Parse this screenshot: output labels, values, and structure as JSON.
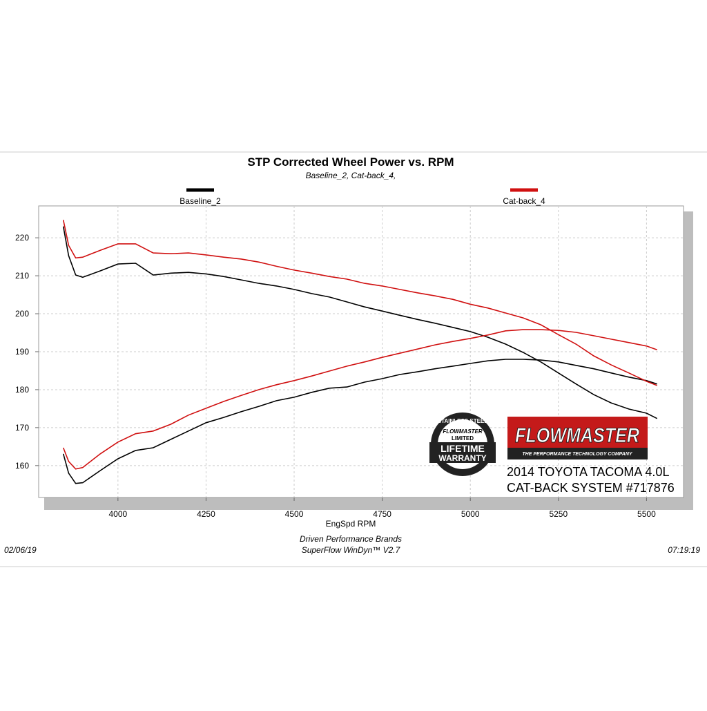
{
  "chart_data": {
    "type": "line",
    "title": "STP Corrected Wheel Power vs. RPM",
    "subtitle": "Baseline_2, Cat-back_4,",
    "x_label": "EngSpd  RPM",
    "footer_lines": [
      "Driven Performance Brands",
      "SuperFlow WinDyn™  V2.7"
    ],
    "date": "02/06/19",
    "time": "07:19:19",
    "xlim": [
      3775,
      5605
    ],
    "ylim": [
      151.6,
      228.4
    ],
    "xticks": [
      4000,
      4250,
      4500,
      4750,
      5000,
      5250,
      5500
    ],
    "yticks": [
      160,
      170,
      180,
      190,
      200,
      210,
      220
    ],
    "grid": true,
    "x": [
      3845,
      3860,
      3880,
      3900,
      3950,
      4000,
      4050,
      4100,
      4150,
      4200,
      4250,
      4300,
      4350,
      4400,
      4450,
      4500,
      4550,
      4600,
      4650,
      4700,
      4750,
      4800,
      4850,
      4900,
      4950,
      5000,
      5050,
      5100,
      5150,
      5200,
      5250,
      5300,
      5350,
      5400,
      5450,
      5500,
      5530
    ],
    "series": [
      {
        "name": "Baseline_2",
        "color": "#000000",
        "curves": [
          [
            223,
            215.3,
            210.2,
            209.6,
            211.3,
            213.1,
            213.3,
            210.2,
            210.7,
            210.9,
            210.5,
            209.8,
            208.9,
            208,
            207.3,
            206.4,
            205.3,
            204.4,
            203.1,
            201.8,
            200.7,
            199.6,
            198.5,
            197.5,
            196.4,
            195.3,
            193.8,
            192,
            189.8,
            187.3,
            184.4,
            181.5,
            178.7,
            176.5,
            174.9,
            173.8,
            172.4
          ],
          [
            163.1,
            158,
            155.3,
            155.5,
            158.7,
            161.8,
            164,
            164.7,
            166.9,
            169.1,
            171.3,
            172.7,
            174.2,
            175.6,
            177.1,
            178,
            179.3,
            180.4,
            180.7,
            182,
            182.9,
            184,
            184.7,
            185.5,
            186.2,
            186.9,
            187.6,
            188,
            188,
            187.8,
            187.3,
            186.4,
            185.5,
            184.4,
            183.3,
            182.4,
            181.5
          ]
        ]
      },
      {
        "name": "Cat-back_4",
        "color": "#d01010",
        "curves": [
          [
            224.7,
            218,
            214.7,
            214.9,
            216.7,
            218.4,
            218.4,
            216,
            215.8,
            216,
            215.5,
            214.9,
            214.4,
            213.6,
            212.5,
            211.5,
            210.7,
            209.8,
            209.1,
            208,
            207.3,
            206.4,
            205.5,
            204.7,
            203.8,
            202.5,
            201.5,
            200.2,
            198.9,
            197.1,
            194.5,
            192,
            188.9,
            186.5,
            184.4,
            182.2,
            181.1
          ],
          [
            164.7,
            161.1,
            159.1,
            159.5,
            163.1,
            166.2,
            168.4,
            169.1,
            170.9,
            173.3,
            175.1,
            176.9,
            178.5,
            180,
            181.3,
            182.4,
            183.6,
            184.9,
            186.2,
            187.3,
            188.5,
            189.6,
            190.7,
            191.8,
            192.7,
            193.5,
            194.4,
            195.5,
            195.8,
            195.8,
            195.6,
            195.1,
            194.2,
            193.3,
            192.4,
            191.5,
            190.5
          ]
        ]
      }
    ],
    "annotations": {
      "brand": "FLOWMASTER",
      "brand_tagline": "THE PERFORMANCE TECHNOLOGY COMPANY",
      "badge": [
        "STAINLESS STEEL",
        "FLOWMASTER",
        "LIMITED",
        "LIFETIME",
        "WARRANTY"
      ],
      "caption": [
        "2014 TOYOTA TACOMA 4.0L",
        "CAT-BACK SYSTEM #717876"
      ]
    }
  }
}
